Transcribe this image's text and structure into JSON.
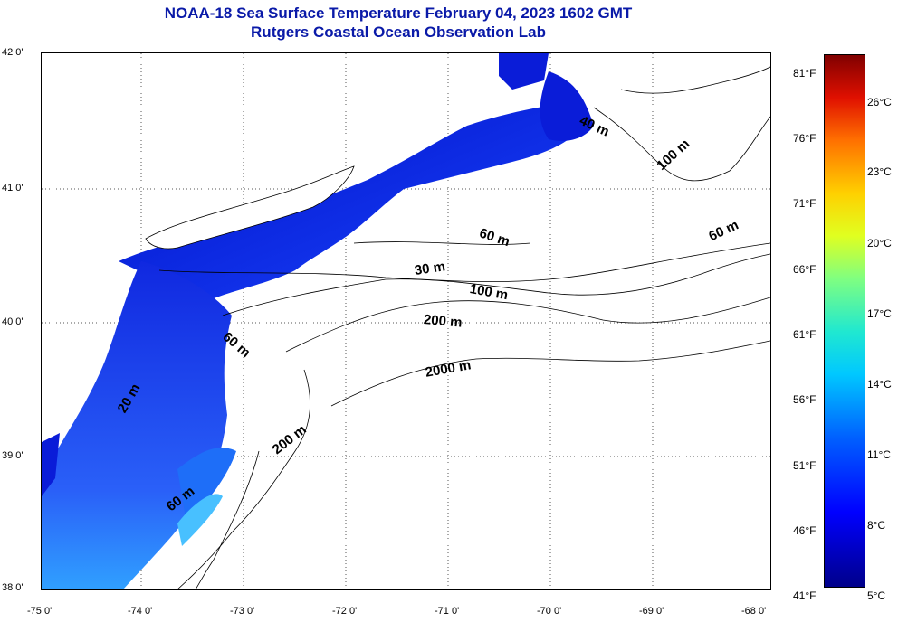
{
  "title": {
    "line1": "NOAA-18 Sea Surface Temperature February 04, 2023 1602 GMT",
    "line2": "Rutgers Coastal Ocean Observation Lab"
  },
  "map": {
    "lat_labels": [
      "42 0'",
      "41 0'",
      "40 0'",
      "39 0'",
      "38 0'"
    ],
    "lon_labels": [
      "-75 0'",
      "-74 0'",
      "-73 0'",
      "-72 0'",
      "-71 0'",
      "-70 0'",
      "-69 0'",
      "-68 0'"
    ],
    "depth_contours": [
      {
        "label": "60 m"
      },
      {
        "label": "100 m"
      },
      {
        "label": "40 m"
      },
      {
        "label": "60 m"
      },
      {
        "label": "30 m"
      },
      {
        "label": "100 m"
      },
      {
        "label": "200 m"
      },
      {
        "label": "60 m"
      },
      {
        "label": "2000 m"
      },
      {
        "label": "20 m"
      },
      {
        "label": "200 m"
      },
      {
        "label": "60 m"
      }
    ]
  },
  "colorbar": {
    "fahrenheit": [
      "81°F",
      "76°F",
      "71°F",
      "66°F",
      "61°F",
      "56°F",
      "51°F",
      "46°F",
      "41°F"
    ],
    "celsius": [
      "26°C",
      "23°C",
      "20°C",
      "17°C",
      "14°C",
      "11°C",
      "8°C",
      "5°C"
    ],
    "colors": {
      "cold": "#00008a",
      "mid": "#20e8d0",
      "warm": "#800000"
    }
  }
}
